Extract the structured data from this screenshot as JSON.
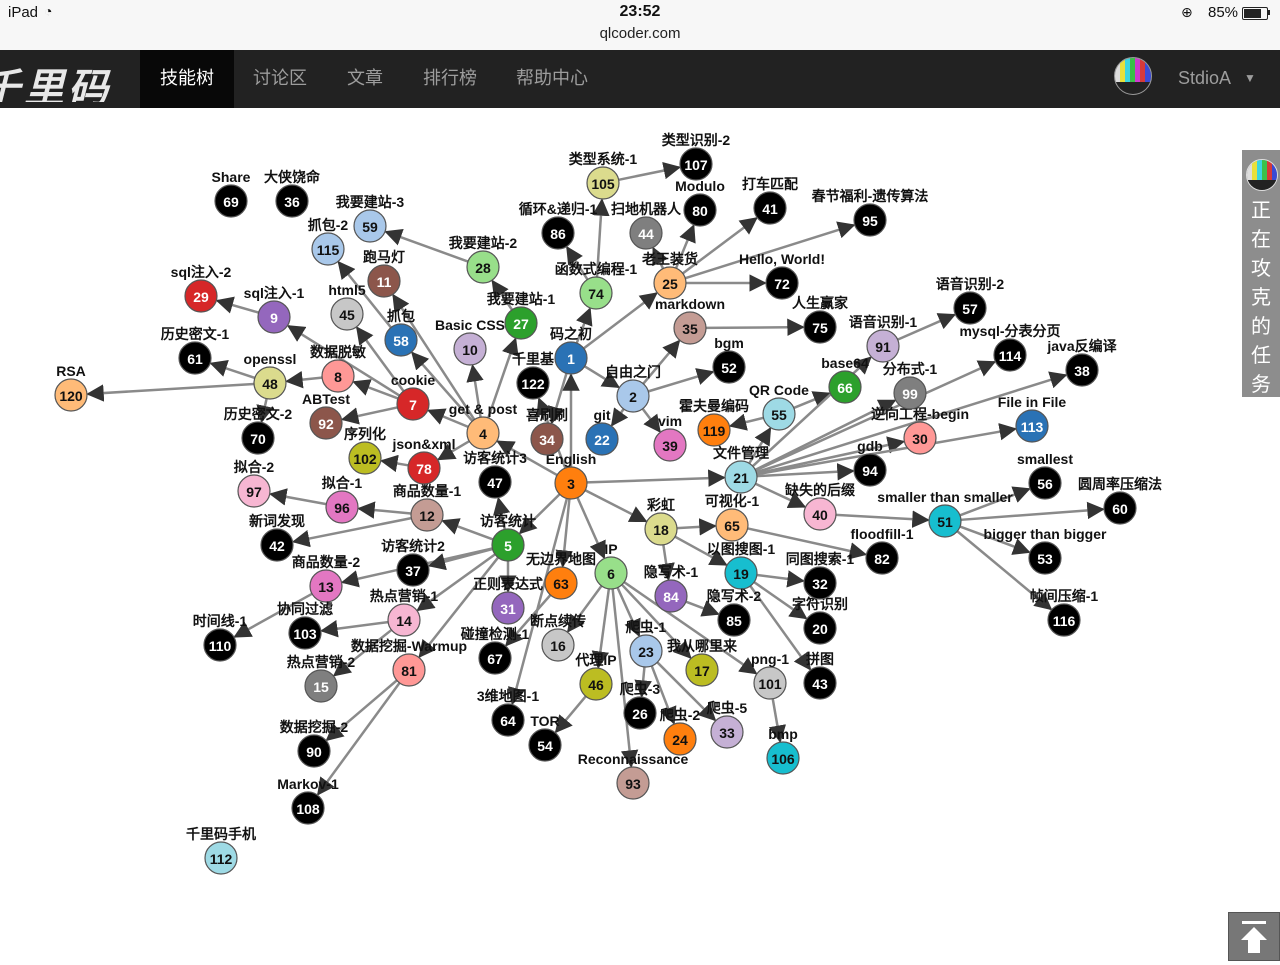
{
  "status_bar": {
    "device": "iPad",
    "wifi_icon": "wifi-icon",
    "time": "23:52",
    "url": "qlcoder.com",
    "battery": "85%",
    "battery_level": 0.85
  },
  "nav": {
    "logo": "千里码",
    "items": [
      {
        "label": "技能树",
        "active": true
      },
      {
        "label": "讨论区",
        "active": false
      },
      {
        "label": "文章",
        "active": false
      },
      {
        "label": "排行榜",
        "active": false
      },
      {
        "label": "帮助中心",
        "active": false
      }
    ],
    "user": "StdioA"
  },
  "side_panel": {
    "label": "正在攻克的任务"
  },
  "graph": {
    "nodes": [
      {
        "id": "1",
        "label": "码之初",
        "color": "#2a72b5"
      },
      {
        "id": "2",
        "label": "自由之门",
        "color": "#a9c8ea"
      },
      {
        "id": "3",
        "label": "English",
        "color": "#ff7f0e"
      },
      {
        "id": "4",
        "label": "get & post",
        "color": "#ffbb78"
      },
      {
        "id": "5",
        "label": "访客统计",
        "color": "#2ca02c"
      },
      {
        "id": "6",
        "label": "IP",
        "color": "#98df8a"
      },
      {
        "id": "7",
        "label": "cookie",
        "color": "#d62728"
      },
      {
        "id": "8",
        "label": "数据脱敏",
        "color": "#ff9896"
      },
      {
        "id": "9",
        "label": "sql注入-1",
        "color": "#9467bd"
      },
      {
        "id": "10",
        "label": "Basic CSS",
        "color": "#c5b0d5"
      },
      {
        "id": "11",
        "label": "跑马灯",
        "color": "#8c564b"
      },
      {
        "id": "12",
        "label": "商品数量-1",
        "color": "#c49c94"
      },
      {
        "id": "13",
        "label": "商品数量-2",
        "color": "#e377c2"
      },
      {
        "id": "14",
        "label": "热点营销-1",
        "color": "#f7b6d2"
      },
      {
        "id": "15",
        "label": "热点营销-2",
        "color": "#7f7f7f"
      },
      {
        "id": "16",
        "label": "断点续传",
        "color": "#c7c7c7"
      },
      {
        "id": "17",
        "label": "我从哪里来",
        "color": "#bcbd22"
      },
      {
        "id": "18",
        "label": "彩虹",
        "color": "#dbdb8d"
      },
      {
        "id": "19",
        "label": "以图搜图-1",
        "color": "#17becf"
      },
      {
        "id": "20",
        "label": "字符识别",
        "color": "#000000"
      },
      {
        "id": "21",
        "label": "文件管理",
        "color": "#9edae5"
      },
      {
        "id": "22",
        "label": "git",
        "color": "#2a72b5"
      },
      {
        "id": "23",
        "label": "爬虫-1",
        "color": "#a9c8ea"
      },
      {
        "id": "24",
        "label": "爬虫-2",
        "color": "#ff7f0e"
      },
      {
        "id": "25",
        "label": "老王装货",
        "color": "#ffbb78"
      },
      {
        "id": "26",
        "label": "爬虫-3",
        "color": "#000000"
      },
      {
        "id": "27",
        "label": "我要建站-1",
        "color": "#2ca02c"
      },
      {
        "id": "28",
        "label": "我要建站-2",
        "color": "#98df8a"
      },
      {
        "id": "29",
        "label": "sql注入-2",
        "color": "#d62728"
      },
      {
        "id": "30",
        "label": "逆向工程-begin",
        "color": "#ff9896"
      },
      {
        "id": "31",
        "label": "正则表达式",
        "color": "#9467bd"
      },
      {
        "id": "32",
        "label": "同图搜索-1",
        "color": "#000000"
      },
      {
        "id": "33",
        "label": "爬虫-5",
        "color": "#c5b0d5"
      },
      {
        "id": "34",
        "label": "喜刷刷",
        "color": "#8c564b"
      },
      {
        "id": "35",
        "label": "markdown",
        "color": "#c49c94"
      },
      {
        "id": "36",
        "label": "大侠饶命",
        "color": "#000000"
      },
      {
        "id": "37",
        "label": "访客统计2",
        "color": "#000000"
      },
      {
        "id": "38",
        "label": "java反编译",
        "color": "#000000"
      },
      {
        "id": "39",
        "label": "vim",
        "color": "#e377c2"
      },
      {
        "id": "40",
        "label": "缺失的后缀",
        "color": "#f7b6d2"
      },
      {
        "id": "41",
        "label": "打车匹配",
        "color": "#000000"
      },
      {
        "id": "42",
        "label": "新词发现",
        "color": "#000000"
      },
      {
        "id": "43",
        "label": "拼图",
        "color": "#000000"
      },
      {
        "id": "44",
        "label": "扫地机器人",
        "color": "#7f7f7f"
      },
      {
        "id": "45",
        "label": "html5",
        "color": "#c7c7c7"
      },
      {
        "id": "46",
        "label": "代理IP",
        "color": "#bcbd22"
      },
      {
        "id": "47",
        "label": "访客统计3",
        "color": "#000000"
      },
      {
        "id": "48",
        "label": "openssl",
        "color": "#dbdb8d"
      },
      {
        "id": "51",
        "label": "smaller than smaller",
        "color": "#17becf"
      },
      {
        "id": "52",
        "label": "bgm",
        "color": "#000000"
      },
      {
        "id": "53",
        "label": "bigger than bigger",
        "color": "#000000"
      },
      {
        "id": "54",
        "label": "TOR",
        "color": "#000000"
      },
      {
        "id": "55",
        "label": "QR Code",
        "color": "#9edae5"
      },
      {
        "id": "56",
        "label": "smallest",
        "color": "#000000"
      },
      {
        "id": "57",
        "label": "语音识别-2",
        "color": "#000000"
      },
      {
        "id": "58",
        "label": "抓包",
        "color": "#2a72b5"
      },
      {
        "id": "59",
        "label": "我要建站-3",
        "color": "#a9c8ea"
      },
      {
        "id": "60",
        "label": "圆周率压缩法",
        "color": "#000000"
      },
      {
        "id": "61",
        "label": "历史密文-1",
        "color": "#000000"
      },
      {
        "id": "63",
        "label": "无边界地图",
        "color": "#ff7f0e"
      },
      {
        "id": "64",
        "label": "3维地图-1",
        "color": "#000000"
      },
      {
        "id": "65",
        "label": "可视化-1",
        "color": "#ffbb78"
      },
      {
        "id": "66",
        "label": "base64",
        "color": "#2ca02c"
      },
      {
        "id": "67",
        "label": "碰撞检测-1",
        "color": "#000000"
      },
      {
        "id": "69",
        "label": "Share",
        "color": "#000000"
      },
      {
        "id": "70",
        "label": "历史密文-2",
        "color": "#000000"
      },
      {
        "id": "72",
        "label": "Hello, World!",
        "color": "#000000"
      },
      {
        "id": "74",
        "label": "函数式编程-1",
        "color": "#98df8a"
      },
      {
        "id": "75",
        "label": "人生赢家",
        "color": "#000000"
      },
      {
        "id": "78",
        "label": "json&xml",
        "color": "#d62728"
      },
      {
        "id": "80",
        "label": "Modulo",
        "color": "#000000"
      },
      {
        "id": "81",
        "label": "数据挖掘-Warmup",
        "color": "#ff9896"
      },
      {
        "id": "82",
        "label": "floodfill-1",
        "color": "#000000"
      },
      {
        "id": "84",
        "label": "隐写术-1",
        "color": "#9467bd"
      },
      {
        "id": "85",
        "label": "隐写术-2",
        "color": "#000000"
      },
      {
        "id": "86",
        "label": "循环&递归-1",
        "color": "#000000"
      },
      {
        "id": "90",
        "label": "数据挖掘-2",
        "color": "#000000"
      },
      {
        "id": "91",
        "label": "语音识别-1",
        "color": "#c5b0d5"
      },
      {
        "id": "92",
        "label": "ABTest",
        "color": "#8c564b"
      },
      {
        "id": "93",
        "label": "Reconnaissance",
        "color": "#c49c94"
      },
      {
        "id": "94",
        "label": "gdb",
        "color": "#000000"
      },
      {
        "id": "95",
        "label": "春节福利-遗传算法",
        "color": "#000000"
      },
      {
        "id": "96",
        "label": "拟合-1",
        "color": "#e377c2"
      },
      {
        "id": "97",
        "label": "拟合-2",
        "color": "#f7b6d2"
      },
      {
        "id": "99",
        "label": "分布式-1",
        "color": "#7f7f7f"
      },
      {
        "id": "101",
        "label": "png-1",
        "color": "#c7c7c7"
      },
      {
        "id": "102",
        "label": "序列化",
        "color": "#bcbd22"
      },
      {
        "id": "103",
        "label": "协同过滤",
        "color": "#000000"
      },
      {
        "id": "105",
        "label": "类型系统-1",
        "color": "#dbdb8d"
      },
      {
        "id": "106",
        "label": "bmp",
        "color": "#17becf"
      },
      {
        "id": "107",
        "label": "类型识别-2",
        "color": "#000000"
      },
      {
        "id": "108",
        "label": "Markov-1",
        "color": "#000000"
      },
      {
        "id": "110",
        "label": "时间线-1",
        "color": "#000000"
      },
      {
        "id": "112",
        "label": "千里码手机",
        "color": "#9edae5"
      },
      {
        "id": "113",
        "label": "File in File",
        "color": "#2a72b5"
      },
      {
        "id": "114",
        "label": "mysql-分表分页",
        "color": "#000000"
      },
      {
        "id": "115",
        "label": "抓包-2",
        "color": "#a9c8ea"
      },
      {
        "id": "116",
        "label": "帧间压缩-1",
        "color": "#000000"
      },
      {
        "id": "119",
        "label": "霍夫曼编码",
        "color": "#ff7f0e"
      },
      {
        "id": "120",
        "label": "RSA",
        "color": "#ffbb78"
      },
      {
        "id": "122",
        "label": "千里基",
        "color": "#000000"
      }
    ],
    "edges": [
      [
        "3",
        "1"
      ],
      [
        "1",
        "2"
      ],
      [
        "1",
        "25"
      ],
      [
        "1",
        "34"
      ],
      [
        "1",
        "74"
      ],
      [
        "2",
        "22"
      ],
      [
        "2",
        "39"
      ],
      [
        "2",
        "52"
      ],
      [
        "2",
        "35"
      ],
      [
        "25",
        "41"
      ],
      [
        "25",
        "72"
      ],
      [
        "25",
        "95"
      ],
      [
        "25",
        "80"
      ],
      [
        "25",
        "44"
      ],
      [
        "74",
        "105"
      ],
      [
        "74",
        "86"
      ],
      [
        "105",
        "107"
      ],
      [
        "3",
        "4"
      ],
      [
        "3",
        "5"
      ],
      [
        "3",
        "6"
      ],
      [
        "3",
        "18"
      ],
      [
        "3",
        "21"
      ],
      [
        "3",
        "63"
      ],
      [
        "3",
        "64"
      ],
      [
        "3",
        "122"
      ],
      [
        "4",
        "7"
      ],
      [
        "4",
        "10"
      ],
      [
        "4",
        "27"
      ],
      [
        "4",
        "11"
      ],
      [
        "4",
        "78"
      ],
      [
        "4",
        "58"
      ],
      [
        "27",
        "28"
      ],
      [
        "28",
        "59"
      ],
      [
        "58",
        "115"
      ],
      [
        "7",
        "8"
      ],
      [
        "7",
        "92"
      ],
      [
        "7",
        "45"
      ],
      [
        "8",
        "48"
      ],
      [
        "48",
        "120"
      ],
      [
        "48",
        "61"
      ],
      [
        "48",
        "70"
      ],
      [
        "9",
        "29"
      ],
      [
        "7",
        "9"
      ],
      [
        "78",
        "102"
      ],
      [
        "5",
        "12"
      ],
      [
        "5",
        "13"
      ],
      [
        "5",
        "14"
      ],
      [
        "5",
        "37"
      ],
      [
        "5",
        "31"
      ],
      [
        "5",
        "47"
      ],
      [
        "5",
        "81"
      ],
      [
        "12",
        "96"
      ],
      [
        "12",
        "42"
      ],
      [
        "96",
        "97"
      ],
      [
        "14",
        "103"
      ],
      [
        "14",
        "15"
      ],
      [
        "13",
        "110"
      ],
      [
        "81",
        "90"
      ],
      [
        "81",
        "108"
      ],
      [
        "6",
        "46"
      ],
      [
        "6",
        "23"
      ],
      [
        "6",
        "17"
      ],
      [
        "6",
        "93"
      ],
      [
        "46",
        "54"
      ],
      [
        "23",
        "26"
      ],
      [
        "23",
        "24"
      ],
      [
        "23",
        "33"
      ],
      [
        "6",
        "16"
      ],
      [
        "6",
        "101"
      ],
      [
        "101",
        "106"
      ],
      [
        "18",
        "65"
      ],
      [
        "18",
        "19"
      ],
      [
        "18",
        "84"
      ],
      [
        "65",
        "82"
      ],
      [
        "19",
        "32"
      ],
      [
        "19",
        "20"
      ],
      [
        "19",
        "43"
      ],
      [
        "84",
        "85"
      ],
      [
        "21",
        "55"
      ],
      [
        "21",
        "40"
      ],
      [
        "21",
        "94"
      ],
      [
        "21",
        "30"
      ],
      [
        "21",
        "99"
      ],
      [
        "21",
        "114"
      ],
      [
        "21",
        "113"
      ],
      [
        "21",
        "38"
      ],
      [
        "55",
        "66"
      ],
      [
        "55",
        "119"
      ],
      [
        "40",
        "51"
      ],
      [
        "51",
        "56"
      ],
      [
        "51",
        "60"
      ],
      [
        "51",
        "53"
      ],
      [
        "51",
        "116"
      ],
      [
        "35",
        "75"
      ],
      [
        "91",
        "57"
      ],
      [
        "21",
        "91"
      ],
      [
        "63",
        "67"
      ]
    ]
  }
}
